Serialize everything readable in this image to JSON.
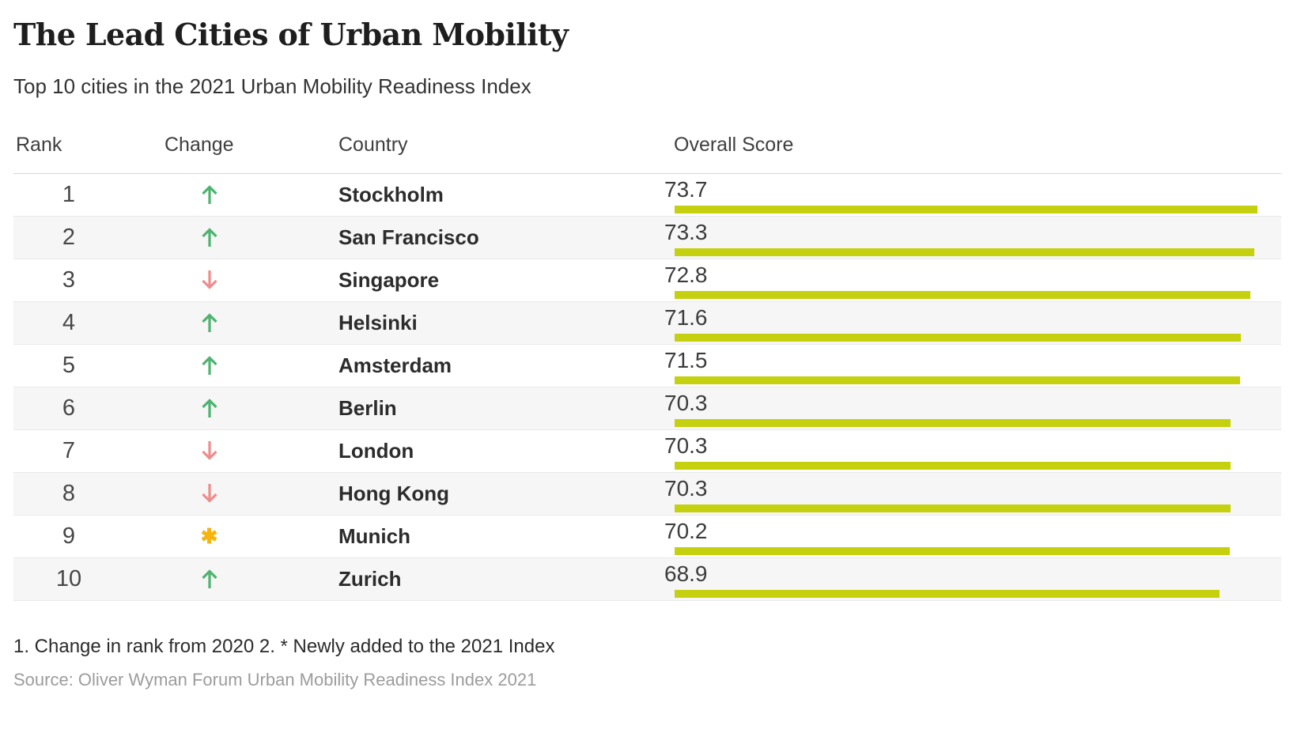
{
  "header": {
    "title": "The Lead Cities of Urban Mobility",
    "subtitle": "Top 10 cities in the 2021 Urban Mobility Readiness Index"
  },
  "table": {
    "columns": [
      "Rank",
      "Change",
      "Country",
      "Overall Score"
    ],
    "rows": [
      {
        "rank": "1",
        "change": "up",
        "city": "Stockholm",
        "score": "73.7"
      },
      {
        "rank": "2",
        "change": "up",
        "city": "San Francisco",
        "score": "73.3"
      },
      {
        "rank": "3",
        "change": "down",
        "city": "Singapore",
        "score": "72.8"
      },
      {
        "rank": "4",
        "change": "up",
        "city": "Helsinki",
        "score": "71.6"
      },
      {
        "rank": "5",
        "change": "up",
        "city": "Amsterdam",
        "score": "71.5"
      },
      {
        "rank": "6",
        "change": "up",
        "city": "Berlin",
        "score": "70.3"
      },
      {
        "rank": "7",
        "change": "down",
        "city": "London",
        "score": "70.3"
      },
      {
        "rank": "8",
        "change": "down",
        "city": "Hong Kong",
        "score": "70.3"
      },
      {
        "rank": "9",
        "change": "new",
        "city": "Munich",
        "score": "70.2"
      },
      {
        "rank": "10",
        "change": "up",
        "city": "Zurich",
        "score": "68.9"
      }
    ],
    "new_entry_symbol": "✱"
  },
  "footer": {
    "note": "1. Change in rank from 2020 2. * Newly added to the 2021 Index",
    "source": "Source: Oliver Wyman Forum Urban Mobility Readiness Index 2021"
  },
  "colors": {
    "bar": "#c5d10e",
    "up_arrow": "#4db36f",
    "down_arrow": "#ee8c8c",
    "new_entry": "#f5b40e",
    "row_alt": "#f6f6f6"
  },
  "chart_data": {
    "type": "bar",
    "orientation": "horizontal",
    "title": "The Lead Cities of Urban Mobility",
    "subtitle": "Top 10 cities in the 2021 Urban Mobility Readiness Index",
    "categories": [
      "Stockholm",
      "San Francisco",
      "Singapore",
      "Helsinki",
      "Amsterdam",
      "Berlin",
      "London",
      "Hong Kong",
      "Munich",
      "Zurich"
    ],
    "values": [
      73.7,
      73.3,
      72.8,
      71.6,
      71.5,
      70.3,
      70.3,
      70.3,
      70.2,
      68.9
    ],
    "ranks": [
      1,
      2,
      3,
      4,
      5,
      6,
      7,
      8,
      9,
      10
    ],
    "rank_change_vs_2020": [
      "up",
      "up",
      "down",
      "up",
      "up",
      "up",
      "down",
      "down",
      "new",
      "up"
    ],
    "xlabel": "Overall Score",
    "xlim": [
      0,
      77
    ],
    "grid": false,
    "legend": false,
    "data_labels": true
  }
}
